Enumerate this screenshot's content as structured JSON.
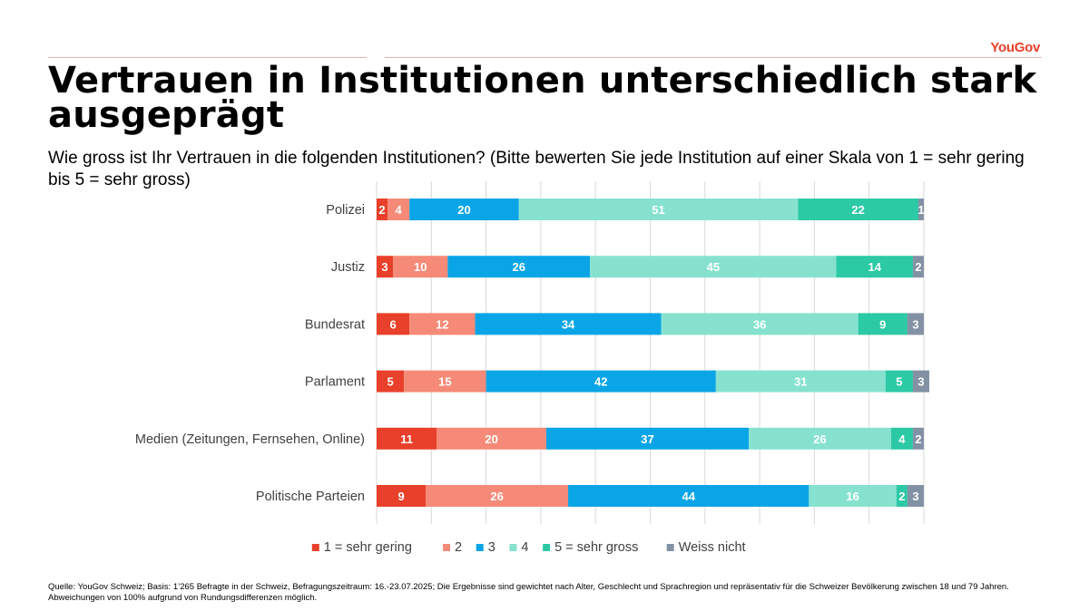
{
  "brand": {
    "name": "YouGov"
  },
  "title": "Vertrauen in Institutionen unterschiedlich stark ausgeprägt",
  "subtitle": "Wie gross ist Ihr Vertrauen in die folgenden Institutionen? (Bitte bewerten Sie jede Institution auf einer Skala von 1 = sehr gering bis 5 = sehr gross)",
  "footer": "Quelle: YouGov Schweiz; Basis: 1’265 Befragte in der Schweiz, Befragungszeitraum: 16.-23.07.2025; Die Ergebnisse sind gewichtet nach Alter, Geschlecht und Sprachregion und repräsentativ für die Schweizer Bevölkerung zwischen 18 und 79 Jahren. Abweichungen von 100% aufgrund von Rundungsdifferenzen möglich.",
  "chart_data": {
    "type": "bar",
    "orientation": "horizontal",
    "stacked": true,
    "categories": [
      "Polizei",
      "Justiz",
      "Bundesrat",
      "Parlament",
      "Medien (Zeitungen, Fernsehen, Online)",
      "Politische Parteien"
    ],
    "series": [
      {
        "name": "1 = sehr gering",
        "color": "#e8402a",
        "values": [
          2,
          3,
          6,
          5,
          11,
          9
        ]
      },
      {
        "name": "2",
        "color": "#f58a78",
        "values": [
          4,
          10,
          12,
          15,
          20,
          26
        ]
      },
      {
        "name": "3",
        "color": "#0aa5e6",
        "values": [
          20,
          26,
          34,
          42,
          37,
          44
        ]
      },
      {
        "name": "4",
        "color": "#86e2cf",
        "values": [
          51,
          45,
          36,
          31,
          26,
          16
        ]
      },
      {
        "name": "5 = sehr gross",
        "color": "#2cc9a5",
        "values": [
          22,
          14,
          9,
          5,
          4,
          2
        ]
      },
      {
        "name": "Weiss nicht",
        "color": "#8391a5",
        "values": [
          1,
          2,
          3,
          3,
          2,
          3
        ]
      }
    ],
    "xlim": [
      0,
      100
    ],
    "grid": true,
    "legend": "bottom",
    "data_labels": true
  }
}
